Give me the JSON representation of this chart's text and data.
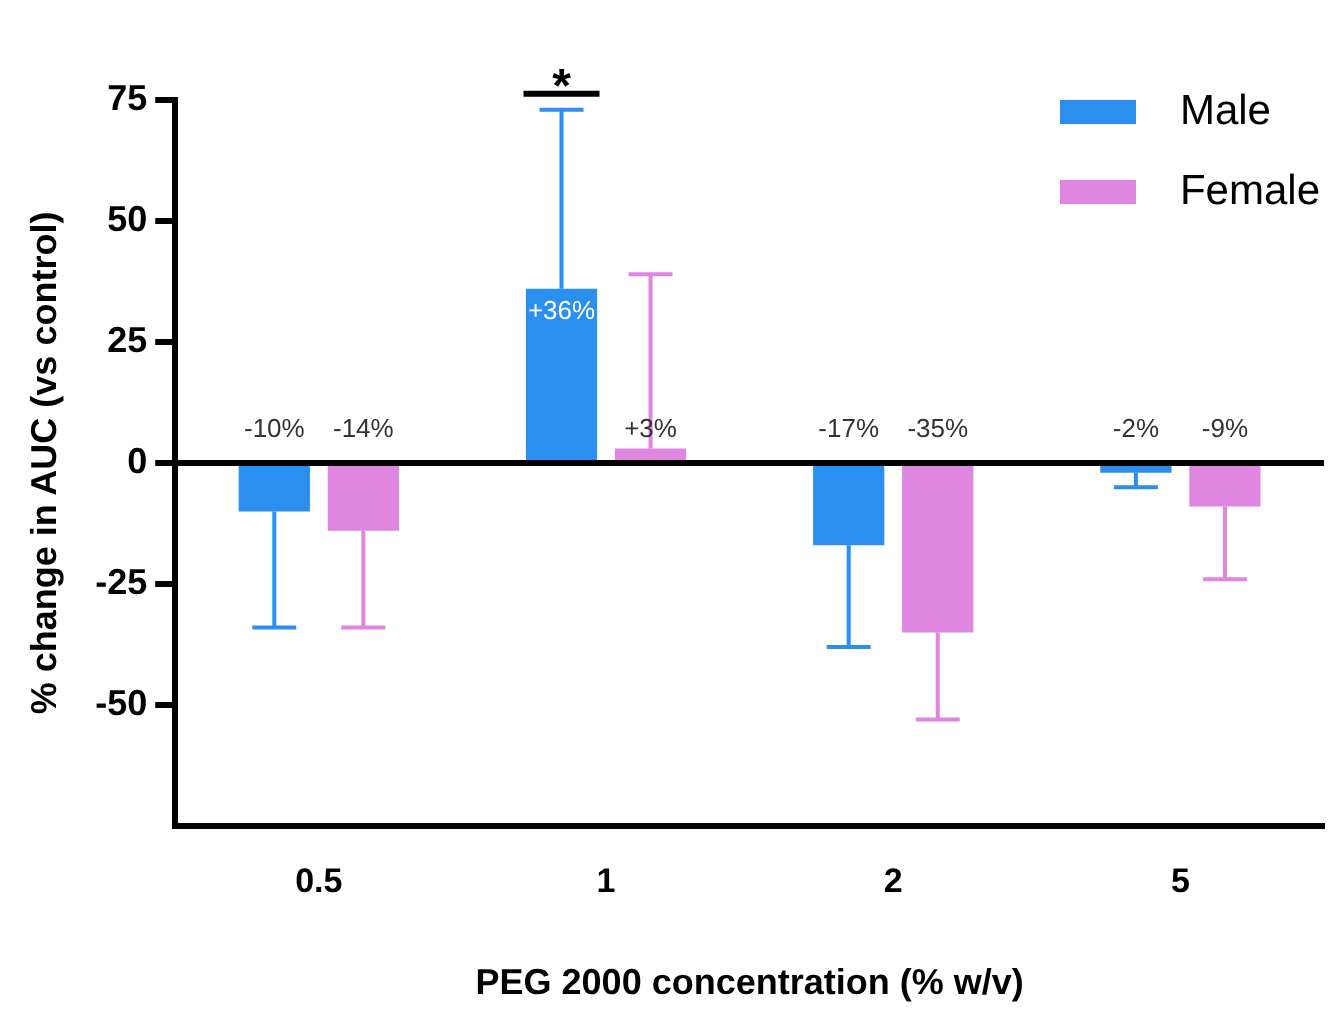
{
  "chart_data": {
    "type": "bar",
    "xlabel": "PEG 2000 concentration (% w/v)",
    "ylabel": "% change in AUC (vs control)",
    "categories": [
      "0.5",
      "1",
      "2",
      "5"
    ],
    "series": [
      {
        "name": "Male",
        "color": "#2b8ff0",
        "values": [
          -10,
          36,
          -17,
          -2
        ],
        "errors": [
          [
            -34,
            -10
          ],
          [
            36,
            73
          ],
          [
            -38,
            -17
          ],
          [
            -5,
            -2
          ]
        ],
        "value_labels": [
          "-10%",
          "+36%",
          "-17%",
          "-2%"
        ]
      },
      {
        "name": "Female",
        "color": "#de86e0",
        "values": [
          -14,
          3,
          -35,
          -9
        ],
        "errors": [
          [
            -34,
            -14
          ],
          [
            3,
            39
          ],
          [
            -53,
            -35
          ],
          [
            -24,
            -9
          ]
        ],
        "value_labels": [
          "-14%",
          "+3%",
          "-35%",
          "-9%"
        ]
      }
    ],
    "annotations": [
      "*"
    ],
    "ref_lines": [
      {
        "axis": "y",
        "value": 0,
        "color": "#000000"
      }
    ],
    "ylim": [
      -75,
      75
    ],
    "yticks": [
      -50,
      -25,
      0,
      25,
      50,
      75
    ],
    "grid": false,
    "legend": "top right"
  }
}
